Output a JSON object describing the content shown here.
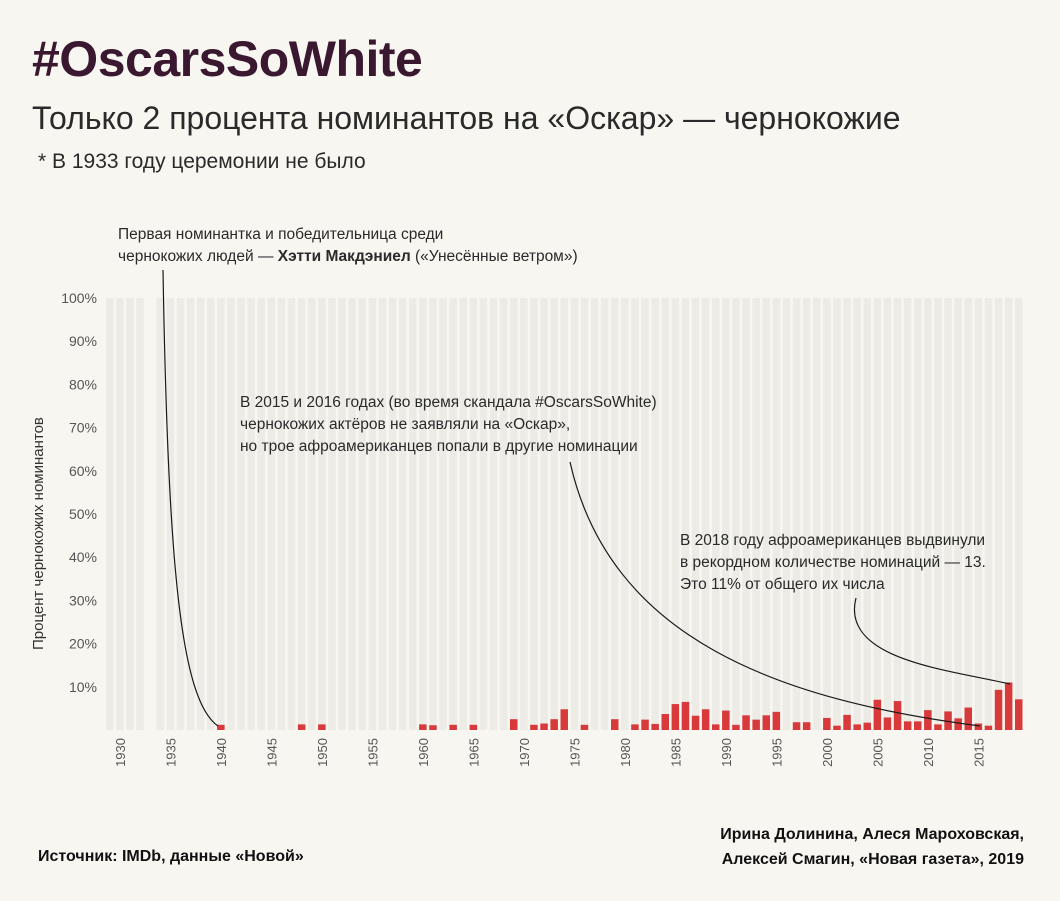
{
  "header": {
    "title": "#OscarsSoWhite",
    "subtitle": "Только 2 процента номинантов на «Оскар» — чернокожие",
    "note": "* В 1933 году церемонии не было"
  },
  "annotations": {
    "first": {
      "line1": "Первая номинантка и победительница среди",
      "line2_prefix": "чернокожих людей — ",
      "line2_bold": "Хэтти Макдэниел",
      "line2_suffix": " («Унесённые ветром»)"
    },
    "scandal": {
      "line1": "В 2015 и 2016 годах (во время скандала #OscarsSoWhite)",
      "line2": "чернокожих актёров не заявляли на «Оскар»,",
      "line3": "но трое афроамериканцев попали в другие номинации"
    },
    "record": {
      "line1": "В 2018 году афроамериканцев выдвинули",
      "line2": "в рекордном количестве номинаций — 13.",
      "line3": "Это 11% от общего их числа"
    }
  },
  "footer": {
    "source": "Источник: IMDb, данные «Новой»",
    "credits_line1": "Ирина Долинина, Алеся Мароховская,",
    "credits_line2": "Алексей Смагин, «Новая газета», 2019"
  },
  "colors": {
    "bar": "#d8393b",
    "background_bar": "#ecebe6",
    "title": "#3a1830"
  },
  "chart_data": {
    "type": "bar",
    "ylabel": "Процент чернокожих номинантов",
    "ylim": [
      0,
      100
    ],
    "y_ticks": [
      "10%",
      "20%",
      "30%",
      "40%",
      "50%",
      "60%",
      "70%",
      "80%",
      "90%",
      "100%"
    ],
    "x_tick_labels": [
      "1930",
      "1935",
      "1940",
      "1945",
      "1950",
      "1955",
      "1960",
      "1965",
      "1970",
      "1975",
      "1980",
      "1985",
      "1990",
      "1995",
      "2000",
      "2005",
      "2010",
      "2015"
    ],
    "missing_years": [
      1933
    ],
    "years": [
      1929,
      1930,
      1931,
      1932,
      1934,
      1935,
      1936,
      1937,
      1938,
      1939,
      1940,
      1941,
      1942,
      1943,
      1944,
      1945,
      1946,
      1947,
      1948,
      1949,
      1950,
      1951,
      1952,
      1953,
      1954,
      1955,
      1956,
      1957,
      1958,
      1959,
      1960,
      1961,
      1962,
      1963,
      1964,
      1965,
      1966,
      1967,
      1968,
      1969,
      1970,
      1971,
      1972,
      1973,
      1974,
      1975,
      1976,
      1977,
      1978,
      1979,
      1980,
      1981,
      1982,
      1983,
      1984,
      1985,
      1986,
      1987,
      1988,
      1989,
      1990,
      1991,
      1992,
      1993,
      1994,
      1995,
      1996,
      1997,
      1998,
      1999,
      2000,
      2001,
      2002,
      2003,
      2004,
      2005,
      2006,
      2007,
      2008,
      2009,
      2010,
      2011,
      2012,
      2013,
      2014,
      2015,
      2016,
      2017,
      2018,
      2019
    ],
    "values": [
      0,
      0,
      0,
      0,
      0,
      0,
      0,
      0,
      0,
      0,
      1.2,
      0,
      0,
      0,
      0,
      0,
      0,
      0,
      1.3,
      0,
      1.3,
      0,
      0,
      0,
      0,
      0,
      0,
      0,
      0,
      0,
      1.3,
      1.1,
      0,
      1.2,
      0,
      1.2,
      0,
      0,
      0,
      2.5,
      0,
      1.2,
      1.5,
      2.5,
      4.8,
      0,
      1.2,
      0,
      0,
      2.5,
      0,
      1.3,
      2.4,
      1.4,
      3.7,
      6,
      6.5,
      3.3,
      4.8,
      1.3,
      4.5,
      1.2,
      3.4,
      2.4,
      3.4,
      4.2,
      0,
      1.8,
      1.8,
      0,
      2.8,
      1,
      3.5,
      1.3,
      1.7,
      7,
      2.9,
      6.7,
      2,
      2,
      4.6,
      1.3,
      4.3,
      2.7,
      5.2,
      1.5,
      1,
      9.3,
      11,
      7.1
    ]
  }
}
